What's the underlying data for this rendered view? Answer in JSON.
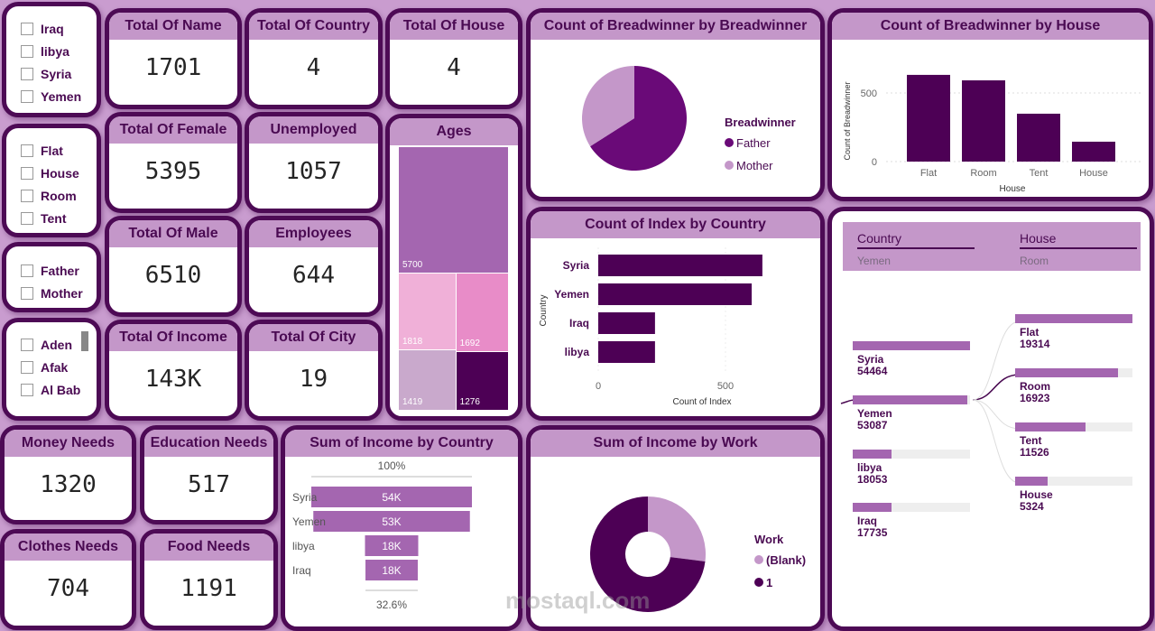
{
  "slicers": {
    "country": [
      "Iraq",
      "libya",
      "Syria",
      "Yemen"
    ],
    "house": [
      "Flat",
      "House",
      "Room",
      "Tent"
    ],
    "breadwinner": [
      "Father",
      "Mother"
    ],
    "city": [
      "Aden",
      "Afak",
      "Al Bab"
    ]
  },
  "kpis": {
    "total_name": {
      "title": "Total Of Name",
      "value": "1701"
    },
    "total_country": {
      "title": "Total Of Country",
      "value": "4"
    },
    "total_house": {
      "title": "Total Of House",
      "value": "4"
    },
    "total_female": {
      "title": "Total Of Female",
      "value": "5395"
    },
    "unemployed": {
      "title": "Unemployed",
      "value": "1057"
    },
    "total_male": {
      "title": "Total Of Male",
      "value": "6510"
    },
    "employees": {
      "title": "Employees",
      "value": "644"
    },
    "total_income": {
      "title": "Total Of Income",
      "value": "143K"
    },
    "total_city": {
      "title": "Total Of City",
      "value": "19"
    },
    "money_needs": {
      "title": "Money Needs",
      "value": "1320"
    },
    "education_needs": {
      "title": "Education Needs",
      "value": "517"
    },
    "clothes_needs": {
      "title": "Clothes Needs",
      "value": "704"
    },
    "food_needs": {
      "title": "Food Needs",
      "value": "1191"
    }
  },
  "colors": {
    "dark": "#4d0055",
    "mid": "#a466b0",
    "light": "#c497c9",
    "border": "#4d0a55"
  },
  "chart_data": [
    {
      "id": "ages",
      "type": "treemap",
      "title": "Ages",
      "values": [
        5700,
        1818,
        1692,
        1419,
        1276
      ],
      "colors": [
        "#a466b0",
        "#f0b0d8",
        "#e88cc8",
        "#c9a9cc",
        "#4d0055"
      ]
    },
    {
      "id": "breadwinner_pie",
      "type": "pie",
      "title": "Count of Breadwinner by Breadwinner",
      "legend_title": "Breadwinner",
      "categories": [
        "Father",
        "Mother"
      ],
      "values": [
        66,
        34
      ],
      "colors": [
        "#6a0a78",
        "#c497c9"
      ],
      "legend": "right"
    },
    {
      "id": "breadwinner_house",
      "type": "bar",
      "title": "Count of Breadwinner by House",
      "categories": [
        "Flat",
        "Room",
        "Tent",
        "House"
      ],
      "values": [
        632,
        592,
        349,
        145
      ],
      "xlabel": "House",
      "ylabel": "Count of Breadwinner",
      "yticks": [
        "0",
        "500"
      ],
      "ylim": [
        0,
        700
      ]
    },
    {
      "id": "index_country",
      "type": "bar",
      "orientation": "horizontal",
      "title": "Count of Index by Country",
      "categories": [
        "Syria",
        "Yemen",
        "Iraq",
        "libya"
      ],
      "values": [
        645,
        603,
        223,
        223
      ],
      "xlabel": "Count of Index",
      "ylabel": "Country",
      "xticks": [
        "0",
        "500"
      ],
      "xlim": [
        0,
        800
      ]
    },
    {
      "id": "income_country",
      "type": "funnel",
      "title": "Sum of Income by Country",
      "categories": [
        "Syria",
        "Yemen",
        "libya",
        "Iraq"
      ],
      "values": [
        54464,
        53087,
        18053,
        17735
      ],
      "labels": [
        "54K",
        "53K",
        "18K",
        "18K"
      ],
      "top_pct": "100%",
      "bottom_pct": "32.6%"
    },
    {
      "id": "income_work",
      "type": "donut",
      "title": "Sum of Income by Work",
      "legend_title": "Work",
      "categories": [
        "(Blank)",
        "1"
      ],
      "values": [
        27,
        73
      ],
      "colors": [
        "#c497c9",
        "#4d0055"
      ],
      "legend": "right"
    }
  ],
  "decomp": {
    "col1": "Country",
    "col1_sel": "Yemen",
    "col2": "House",
    "col2_sel": "Room",
    "country": [
      {
        "name": "Syria",
        "value": "54464",
        "f": 1
      },
      {
        "name": "Yemen",
        "value": "53087",
        "f": 0.975
      },
      {
        "name": "libya",
        "value": "18053",
        "f": 0.33
      },
      {
        "name": "Iraq",
        "value": "17735",
        "f": 0.33
      }
    ],
    "house": [
      {
        "name": "Flat",
        "value": "19314",
        "f": 1
      },
      {
        "name": "Room",
        "value": "16923",
        "f": 0.88
      },
      {
        "name": "Tent",
        "value": "11526",
        "f": 0.6
      },
      {
        "name": "House",
        "value": "5324",
        "f": 0.28
      }
    ]
  },
  "watermark": "mostaql.com"
}
